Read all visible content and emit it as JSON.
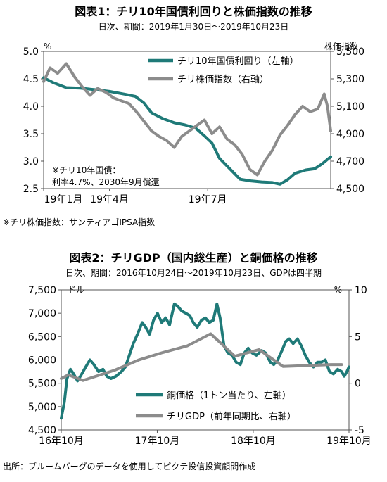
{
  "figure": {
    "source_note": "出所：ブルームバーグのデータを使用してピクテ投信投資顧問作成"
  },
  "chart_data": [
    {
      "type": "line",
      "title": "図表1：チリ10年国債利回りと株価指数の推移",
      "subtitle": "日次、期間：2019年1月30日～2019年10月23日",
      "left_unit": "%",
      "right_unit": "株価指数",
      "left_ylim": [
        2.5,
        5.0
      ],
      "left_ticks": [
        "2.5",
        "3.0",
        "3.5",
        "4.0",
        "4.5",
        "5.0"
      ],
      "right_ylim": [
        4500,
        5500
      ],
      "right_ticks": [
        "4,500",
        "4,700",
        "4,900",
        "5,100",
        "5,300",
        "5,500"
      ],
      "x_ticks": [
        "19年1月",
        "19年4月",
        "19年7月"
      ],
      "x_tick_dates": [
        "2019-01-30",
        "2019-04-01",
        "2019-07-01"
      ],
      "x_range": [
        "2019-01-30",
        "2019-10-23"
      ],
      "legend": "top-right",
      "annotation_lines": [
        "※チリ10年国債：",
        "利率4.7%、2030年9月償還"
      ],
      "footnote": "※チリ株価指数：サンティアゴIPSA指数",
      "series": [
        {
          "name": "チリ10年国債利回り（左軸）",
          "axis": "left",
          "color": "#1f7a78",
          "points": [
            [
              "2019-01-30",
              4.52
            ],
            [
              "2019-02-08",
              4.43
            ],
            [
              "2019-02-20",
              4.34
            ],
            [
              "2019-03-05",
              4.33
            ],
            [
              "2019-03-20",
              4.3
            ],
            [
              "2019-04-01",
              4.27
            ],
            [
              "2019-04-15",
              4.22
            ],
            [
              "2019-04-25",
              4.18
            ],
            [
              "2019-05-03",
              4.06
            ],
            [
              "2019-05-10",
              3.88
            ],
            [
              "2019-05-20",
              3.78
            ],
            [
              "2019-05-31",
              3.7
            ],
            [
              "2019-06-10",
              3.66
            ],
            [
              "2019-06-20",
              3.6
            ],
            [
              "2019-06-28",
              3.46
            ],
            [
              "2019-07-05",
              3.33
            ],
            [
              "2019-07-12",
              3.05
            ],
            [
              "2019-07-22",
              2.85
            ],
            [
              "2019-07-31",
              2.67
            ],
            [
              "2019-08-10",
              2.64
            ],
            [
              "2019-08-20",
              2.62
            ],
            [
              "2019-08-30",
              2.61
            ],
            [
              "2019-09-06",
              2.58
            ],
            [
              "2019-09-13",
              2.66
            ],
            [
              "2019-09-20",
              2.78
            ],
            [
              "2019-09-30",
              2.84
            ],
            [
              "2019-10-08",
              2.86
            ],
            [
              "2019-10-15",
              2.95
            ],
            [
              "2019-10-23",
              3.08
            ]
          ]
        },
        {
          "name": "チリ株価指数（右軸）",
          "axis": "right",
          "color": "#8c8c8c",
          "points": [
            [
              "2019-01-30",
              5280
            ],
            [
              "2019-02-05",
              5380
            ],
            [
              "2019-02-12",
              5340
            ],
            [
              "2019-02-20",
              5410
            ],
            [
              "2019-02-28",
              5310
            ],
            [
              "2019-03-07",
              5240
            ],
            [
              "2019-03-14",
              5180
            ],
            [
              "2019-03-21",
              5230
            ],
            [
              "2019-03-29",
              5200
            ],
            [
              "2019-04-05",
              5160
            ],
            [
              "2019-04-12",
              5140
            ],
            [
              "2019-04-19",
              5120
            ],
            [
              "2019-04-26",
              5060
            ],
            [
              "2019-05-03",
              4990
            ],
            [
              "2019-05-10",
              4920
            ],
            [
              "2019-05-17",
              4880
            ],
            [
              "2019-05-24",
              4850
            ],
            [
              "2019-05-31",
              4800
            ],
            [
              "2019-06-07",
              4880
            ],
            [
              "2019-06-14",
              4920
            ],
            [
              "2019-06-21",
              4960
            ],
            [
              "2019-06-28",
              5000
            ],
            [
              "2019-07-05",
              4900
            ],
            [
              "2019-07-12",
              4950
            ],
            [
              "2019-07-19",
              4860
            ],
            [
              "2019-07-26",
              4820
            ],
            [
              "2019-08-02",
              4750
            ],
            [
              "2019-08-09",
              4640
            ],
            [
              "2019-08-16",
              4600
            ],
            [
              "2019-08-23",
              4700
            ],
            [
              "2019-08-30",
              4780
            ],
            [
              "2019-09-06",
              4890
            ],
            [
              "2019-09-13",
              4960
            ],
            [
              "2019-09-20",
              5040
            ],
            [
              "2019-09-27",
              5100
            ],
            [
              "2019-10-04",
              5060
            ],
            [
              "2019-10-11",
              5080
            ],
            [
              "2019-10-17",
              5190
            ],
            [
              "2019-10-20",
              5100
            ],
            [
              "2019-10-23",
              4920
            ]
          ]
        }
      ]
    },
    {
      "type": "line",
      "title": "図表2：チリGDP（国内総生産）と銅価格の推移",
      "subtitle": "日次、期間：2016年10月24日～2019年10月23日、GDPは四半期",
      "left_unit": "ドル",
      "right_unit": "%",
      "left_ylim": [
        4500,
        7500
      ],
      "left_ticks": [
        "4,500",
        "5,000",
        "5,500",
        "6,000",
        "6,500",
        "7,000",
        "7,500"
      ],
      "right_ylim": [
        -5,
        10
      ],
      "right_ticks": [
        "-5",
        "0",
        "5",
        "10"
      ],
      "x_ticks": [
        "16年10月",
        "17年10月",
        "18年10月",
        "19年10月"
      ],
      "x_tick_dates": [
        "2016-10-24",
        "2017-10-24",
        "2018-10-24",
        "2019-10-23"
      ],
      "x_range": [
        "2016-10-24",
        "2019-10-23"
      ],
      "legend": "bottom-right",
      "series": [
        {
          "name": "銅価格（1トン当たり、左軸）",
          "axis": "left",
          "color": "#1f7a78",
          "points": [
            [
              "2016-10-24",
              4750
            ],
            [
              "2016-11-05",
              5100
            ],
            [
              "2016-11-15",
              5600
            ],
            [
              "2016-11-28",
              5800
            ],
            [
              "2016-12-10",
              5700
            ],
            [
              "2016-12-25",
              5550
            ],
            [
              "2017-01-10",
              5700
            ],
            [
              "2017-01-25",
              5850
            ],
            [
              "2017-02-10",
              6000
            ],
            [
              "2017-02-25",
              5900
            ],
            [
              "2017-03-15",
              5750
            ],
            [
              "2017-04-01",
              5800
            ],
            [
              "2017-04-15",
              5650
            ],
            [
              "2017-05-01",
              5600
            ],
            [
              "2017-05-20",
              5650
            ],
            [
              "2017-06-10",
              5750
            ],
            [
              "2017-06-25",
              5850
            ],
            [
              "2017-07-10",
              6100
            ],
            [
              "2017-07-25",
              6350
            ],
            [
              "2017-08-10",
              6550
            ],
            [
              "2017-08-28",
              6800
            ],
            [
              "2017-09-10",
              6700
            ],
            [
              "2017-09-25",
              6550
            ],
            [
              "2017-10-10",
              6850
            ],
            [
              "2017-10-25",
              7000
            ],
            [
              "2017-11-10",
              6800
            ],
            [
              "2017-11-25",
              6900
            ],
            [
              "2017-12-10",
              6750
            ],
            [
              "2017-12-28",
              7200
            ],
            [
              "2018-01-10",
              7150
            ],
            [
              "2018-01-25",
              7050
            ],
            [
              "2018-02-10",
              7000
            ],
            [
              "2018-02-25",
              6950
            ],
            [
              "2018-03-10",
              6800
            ],
            [
              "2018-03-25",
              6700
            ],
            [
              "2018-04-10",
              6850
            ],
            [
              "2018-04-25",
              6900
            ],
            [
              "2018-05-10",
              6800
            ],
            [
              "2018-05-25",
              6850
            ],
            [
              "2018-06-08",
              7200
            ],
            [
              "2018-06-20",
              6900
            ],
            [
              "2018-07-05",
              6300
            ],
            [
              "2018-07-20",
              6150
            ],
            [
              "2018-08-05",
              6100
            ],
            [
              "2018-08-20",
              5950
            ],
            [
              "2018-09-05",
              5900
            ],
            [
              "2018-09-20",
              6150
            ],
            [
              "2018-10-05",
              6250
            ],
            [
              "2018-10-20",
              6150
            ],
            [
              "2018-11-05",
              6100
            ],
            [
              "2018-11-25",
              6200
            ],
            [
              "2018-12-10",
              6150
            ],
            [
              "2018-12-28",
              5950
            ],
            [
              "2019-01-10",
              5900
            ],
            [
              "2019-01-25",
              6000
            ],
            [
              "2019-02-10",
              6200
            ],
            [
              "2019-02-25",
              6400
            ],
            [
              "2019-03-10",
              6450
            ],
            [
              "2019-03-25",
              6350
            ],
            [
              "2019-04-10",
              6450
            ],
            [
              "2019-04-25",
              6300
            ],
            [
              "2019-05-10",
              6100
            ],
            [
              "2019-05-25",
              5950
            ],
            [
              "2019-06-10",
              5850
            ],
            [
              "2019-06-25",
              5950
            ],
            [
              "2019-07-10",
              5950
            ],
            [
              "2019-07-25",
              6000
            ],
            [
              "2019-08-10",
              5750
            ],
            [
              "2019-08-25",
              5700
            ],
            [
              "2019-09-10",
              5800
            ],
            [
              "2019-09-25",
              5750
            ],
            [
              "2019-10-05",
              5650
            ],
            [
              "2019-10-15",
              5750
            ],
            [
              "2019-10-23",
              5850
            ]
          ]
        },
        {
          "name": "チリGDP（前年同期比、右軸）",
          "axis": "right",
          "color": "#8c8c8c",
          "points": [
            [
              "2016-10-24",
              0.5
            ],
            [
              "2016-11-20",
              0.9
            ],
            [
              "2017-01-15",
              0.3
            ],
            [
              "2017-05-15",
              1.4
            ],
            [
              "2017-08-15",
              2.5
            ],
            [
              "2017-11-15",
              3.3
            ],
            [
              "2018-02-15",
              4.0
            ],
            [
              "2018-05-15",
              5.3
            ],
            [
              "2018-08-15",
              2.9
            ],
            [
              "2018-11-15",
              3.6
            ],
            [
              "2019-02-15",
              1.8
            ],
            [
              "2019-05-15",
              1.9
            ],
            [
              "2019-08-15",
              2.0
            ],
            [
              "2019-09-25",
              2.0
            ]
          ]
        }
      ]
    }
  ]
}
